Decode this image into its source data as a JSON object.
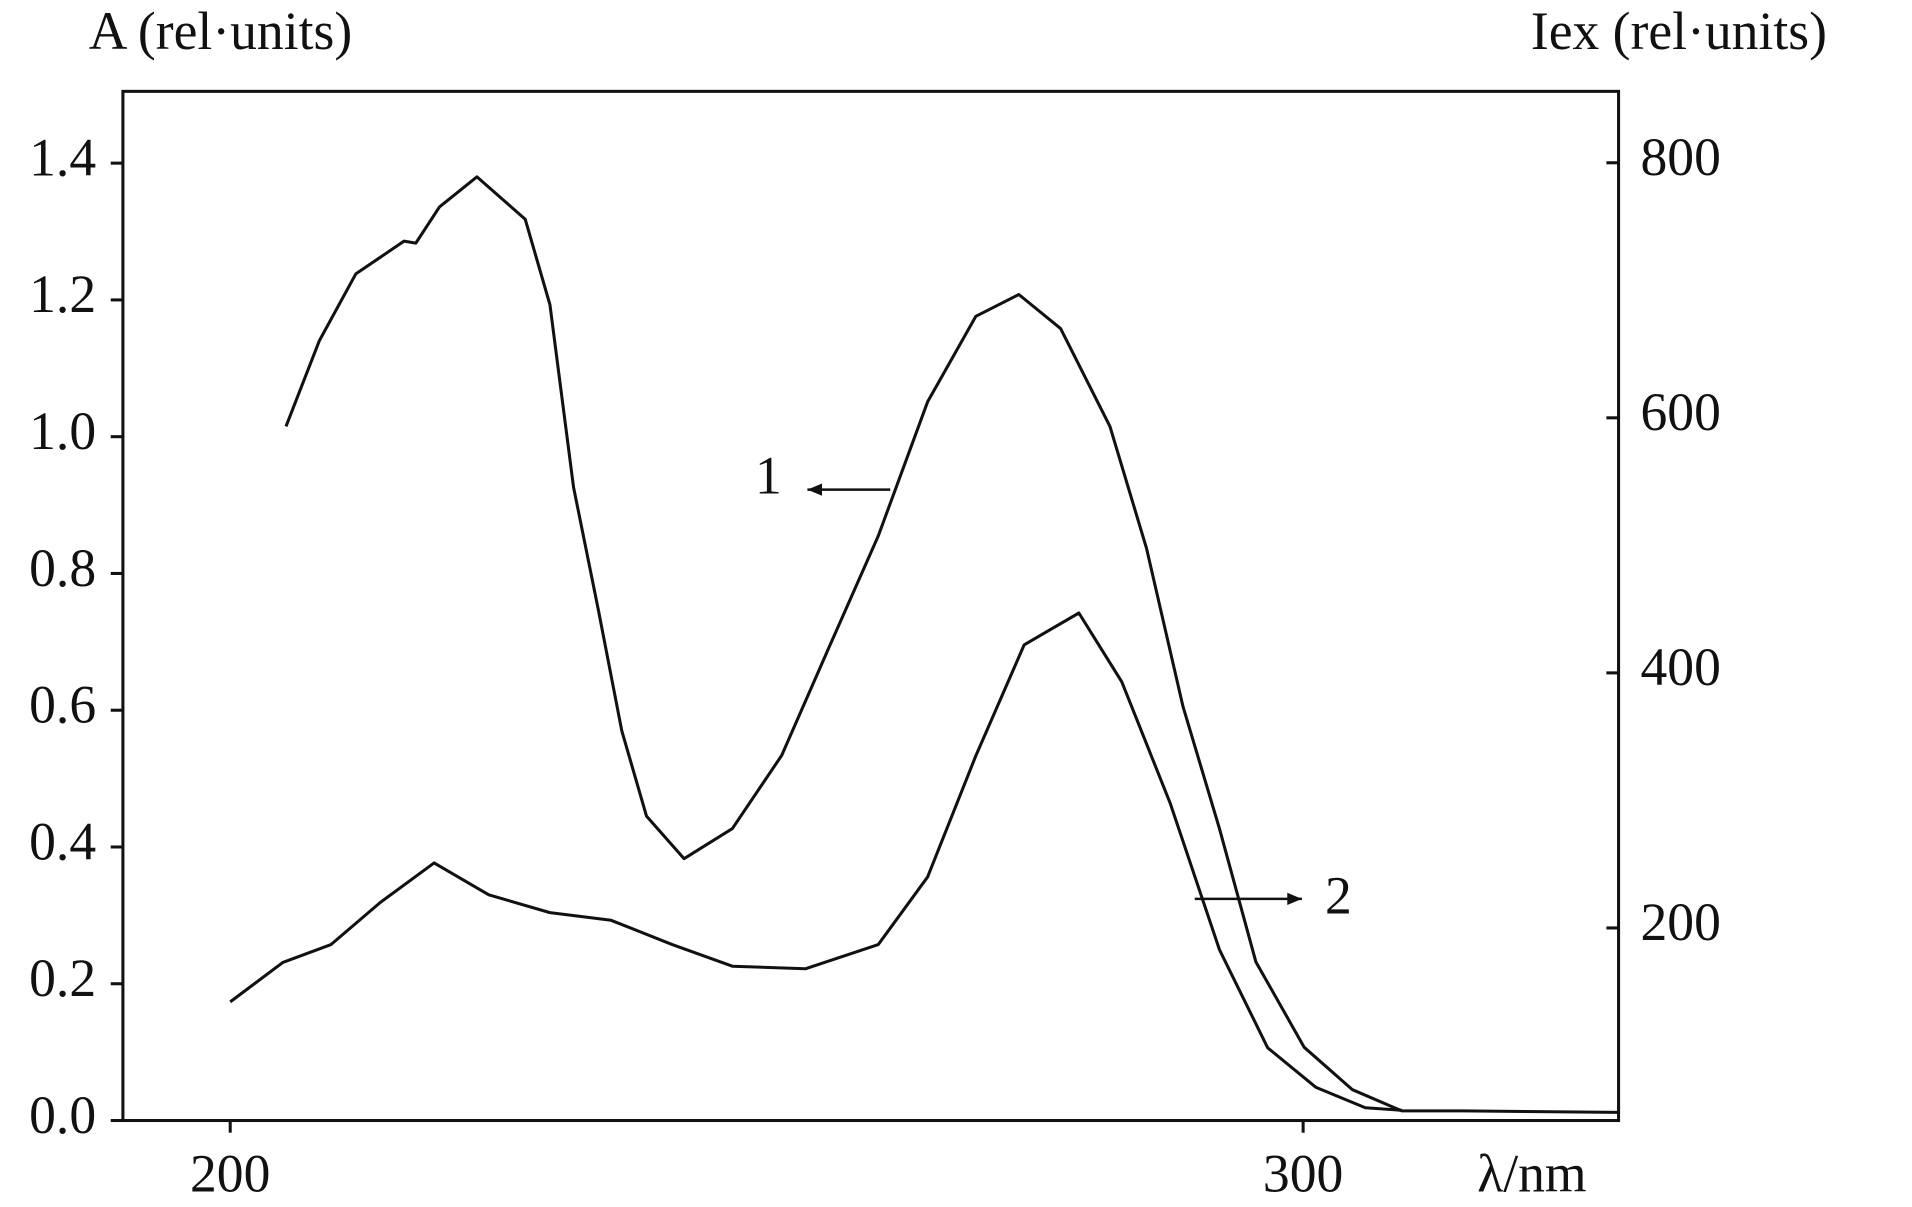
{
  "chart_data": {
    "type": "line",
    "y_label": "A (rel·units)",
    "y2_label": "Iex (rel·units)",
    "x_label": "λ/nm",
    "xlim": [
      190,
      329.4
    ],
    "xticks": [
      200,
      300
    ],
    "ylim": [
      0,
      1.505
    ],
    "yticks": [
      {
        "value": 0,
        "label": "0.0"
      },
      0.2,
      0.4,
      0.6,
      0.8,
      {
        "value": 1.0,
        "label": "1.0"
      },
      1.2,
      1.4
    ],
    "y2lim": [
      49,
      856
    ],
    "y2ticks": [
      200,
      400,
      600,
      800
    ],
    "series": [
      {
        "name": "1",
        "color": "#111111",
        "x": [
          205.2,
          208.3,
          211.7,
          216.2,
          217.3,
          219.5,
          223,
          227.5,
          229.8,
          232,
          234.3,
          236.5,
          238.8,
          242.3,
          246.8,
          251.4,
          255.9,
          260.4,
          265,
          269.5,
          273.5,
          277.4,
          282,
          285.4,
          288.8,
          292.2,
          295.6,
          300.1,
          304.6,
          309.2,
          314.9,
          329.4
        ],
        "values": [
          1.015,
          1.14,
          1.238,
          1.286,
          1.283,
          1.336,
          1.38,
          1.318,
          1.193,
          0.926,
          0.748,
          0.57,
          0.445,
          0.383,
          0.427,
          0.534,
          0.695,
          0.855,
          1.051,
          1.176,
          1.208,
          1.158,
          1.015,
          0.837,
          0.606,
          0.427,
          0.232,
          0.107,
          0.045,
          0.014,
          0.014,
          0.012
        ]
      },
      {
        "name": "2",
        "color": "#111111",
        "axis": "y2",
        "x": [
          200,
          204.9,
          209.4,
          214,
          219,
          224.1,
          229.8,
          235.5,
          241.2,
          246.8,
          253.6,
          260.4,
          265,
          269.5,
          274,
          279.1,
          283.1,
          287.6,
          292.2,
          296.7,
          301.2,
          305.8,
          309.2
        ],
        "values": [
          142,
          173,
          187,
          220,
          251,
          226,
          212,
          206,
          187,
          170,
          168,
          187,
          240,
          335,
          422,
          447,
          393,
          298,
          183,
          106,
          75,
          59,
          57
        ]
      }
    ]
  }
}
